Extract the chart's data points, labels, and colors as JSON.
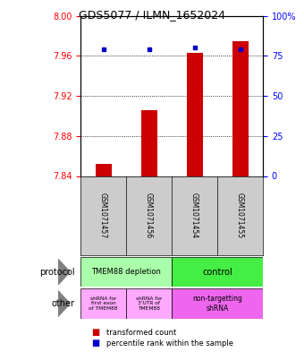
{
  "title": "GDS5077 / ILMN_1652024",
  "samples": [
    "GSM1071457",
    "GSM1071456",
    "GSM1071454",
    "GSM1071455"
  ],
  "red_values": [
    7.852,
    7.906,
    7.963,
    7.975
  ],
  "blue_values": [
    79,
    79,
    80,
    79
  ],
  "ylim_left": [
    7.84,
    8.0
  ],
  "ylim_right": [
    0,
    100
  ],
  "yticks_left": [
    7.84,
    7.88,
    7.92,
    7.96,
    8.0
  ],
  "yticks_right": [
    0,
    25,
    50,
    75,
    100
  ],
  "ytick_labels_right": [
    "0",
    "25",
    "50",
    "75",
    "100%"
  ],
  "bar_color": "#cc0000",
  "dot_color": "#0000cc",
  "protocol_labels": [
    "TMEM88 depletion",
    "control"
  ],
  "protocol_colors": [
    "#aaffaa",
    "#44ee44"
  ],
  "other_labels": [
    "shRNA for\nfirst exon\nof TMEM88",
    "shRNA for\n3'UTR of\nTMEM88",
    "non-targetting\nshRNA"
  ],
  "other_colors": [
    "#ffaaff",
    "#ffaaff",
    "#ee66ee"
  ],
  "legend_red": "transformed count",
  "legend_blue": "percentile rank within the sample",
  "background_color": "#ffffff",
  "sample_bg": "#cccccc",
  "title_fontsize": 9,
  "tick_fontsize": 7,
  "bar_width": 0.35
}
